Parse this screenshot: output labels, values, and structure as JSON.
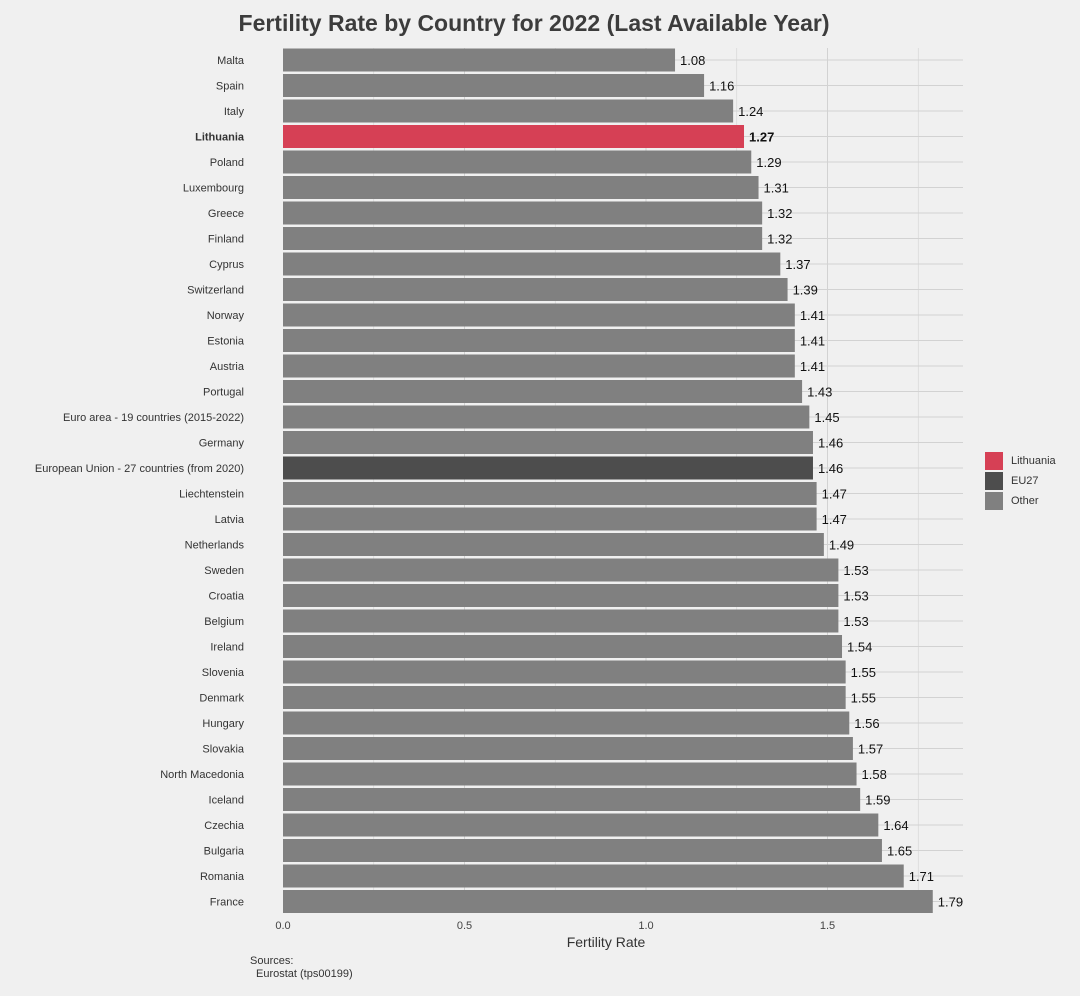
{
  "chart_data": {
    "type": "bar",
    "orientation": "horizontal",
    "title": "Fertility Rate by Country for 2022 (Last Available Year)",
    "xlabel": "Fertility Rate",
    "ylabel": "",
    "xlim": [
      0,
      1.88
    ],
    "xticks": [
      "0.0",
      "0.5",
      "1.0",
      "1.5"
    ],
    "xtick_values": [
      0,
      0.5,
      1.0,
      1.5
    ],
    "grid": true,
    "legend_position": "right",
    "highlight": "Lithuania",
    "categories": [
      "Malta",
      "Spain",
      "Italy",
      "Lithuania",
      "Poland",
      "Luxembourg",
      "Greece",
      "Finland",
      "Cyprus",
      "Switzerland",
      "Norway",
      "Estonia",
      "Austria",
      "Portugal",
      "Euro area - 19 countries  (2015-2022)",
      "Germany",
      "European Union - 27 countries (from 2020)",
      "Liechtenstein",
      "Latvia",
      "Netherlands",
      "Sweden",
      "Croatia",
      "Belgium",
      "Ireland",
      "Slovenia",
      "Denmark",
      "Hungary",
      "Slovakia",
      "North Macedonia",
      "Iceland",
      "Czechia",
      "Bulgaria",
      "Romania",
      "France"
    ],
    "values": [
      1.08,
      1.16,
      1.24,
      1.27,
      1.29,
      1.31,
      1.32,
      1.32,
      1.37,
      1.39,
      1.41,
      1.41,
      1.41,
      1.43,
      1.45,
      1.46,
      1.46,
      1.47,
      1.47,
      1.49,
      1.53,
      1.53,
      1.53,
      1.54,
      1.55,
      1.55,
      1.56,
      1.57,
      1.58,
      1.59,
      1.64,
      1.65,
      1.71,
      1.79
    ],
    "value_labels": [
      "1.08",
      "1.16",
      "1.24",
      "1.27",
      "1.29",
      "1.31",
      "1.32",
      "1.32",
      "1.37",
      "1.39",
      "1.41",
      "1.41",
      "1.41",
      "1.43",
      "1.45",
      "1.46",
      "1.46",
      "1.47",
      "1.47",
      "1.49",
      "1.53",
      "1.53",
      "1.53",
      "1.54",
      "1.55",
      "1.55",
      "1.56",
      "1.57",
      "1.58",
      "1.59",
      "1.64",
      "1.65",
      "1.71",
      "1.79"
    ],
    "groups": [
      "Other",
      "Other",
      "Other",
      "Lithuania",
      "Other",
      "Other",
      "Other",
      "Other",
      "Other",
      "Other",
      "Other",
      "Other",
      "Other",
      "Other",
      "Other",
      "Other",
      "EU27",
      "Other",
      "Other",
      "Other",
      "Other",
      "Other",
      "Other",
      "Other",
      "Other",
      "Other",
      "Other",
      "Other",
      "Other",
      "Other",
      "Other",
      "Other",
      "Other",
      "Other"
    ],
    "legend": [
      {
        "name": "Lithuania",
        "color": "#d64055"
      },
      {
        "name": "EU27",
        "color": "#4d4d4d"
      },
      {
        "name": "Other",
        "color": "#808080"
      }
    ],
    "colors": {
      "Lithuania": "#d64055",
      "EU27": "#4d4d4d",
      "Other": "#808080",
      "background": "#f0f0f0",
      "grid": "#d2d2d2"
    }
  },
  "sources": {
    "heading": "Sources:",
    "line": "Eurostat (tps00199)"
  }
}
